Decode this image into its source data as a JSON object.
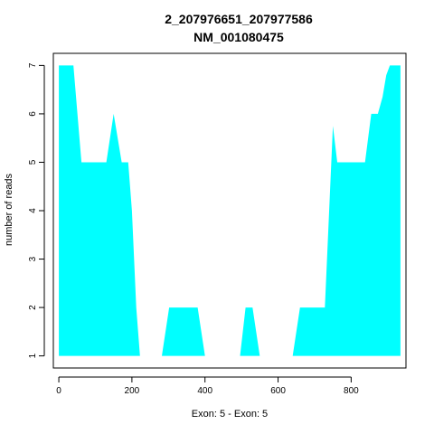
{
  "chart_data": {
    "type": "area",
    "title": "2_207976651_207977586",
    "subtitle": "NM_001080475",
    "xlabel": "Exon: 5 - Exon: 5",
    "ylabel": "number of reads",
    "xlim": [
      -15,
      950
    ],
    "ylim": [
      0.75,
      7.25
    ],
    "x_ticks": [
      0,
      200,
      400,
      600,
      800
    ],
    "y_ticks": [
      1,
      2,
      3,
      4,
      5,
      6,
      7
    ],
    "fill_color": "#00FFFF",
    "grid": false,
    "points": [
      [
        0,
        7
      ],
      [
        40,
        7
      ],
      [
        62,
        5
      ],
      [
        130,
        5
      ],
      [
        150,
        6
      ],
      [
        172,
        5
      ],
      [
        190,
        5
      ],
      [
        200,
        4
      ],
      [
        212,
        2
      ],
      [
        222,
        1
      ],
      [
        282,
        1
      ],
      [
        302,
        2
      ],
      [
        380,
        2
      ],
      [
        400,
        1
      ],
      [
        496,
        1
      ],
      [
        511,
        2
      ],
      [
        530,
        2
      ],
      [
        550,
        1
      ],
      [
        640,
        1
      ],
      [
        660,
        2
      ],
      [
        728,
        2
      ],
      [
        750,
        5.75
      ],
      [
        762,
        5
      ],
      [
        838,
        5
      ],
      [
        855,
        6
      ],
      [
        873,
        6
      ],
      [
        886,
        6.35
      ],
      [
        896,
        6.8
      ],
      [
        906,
        7
      ],
      [
        935,
        7
      ]
    ]
  }
}
